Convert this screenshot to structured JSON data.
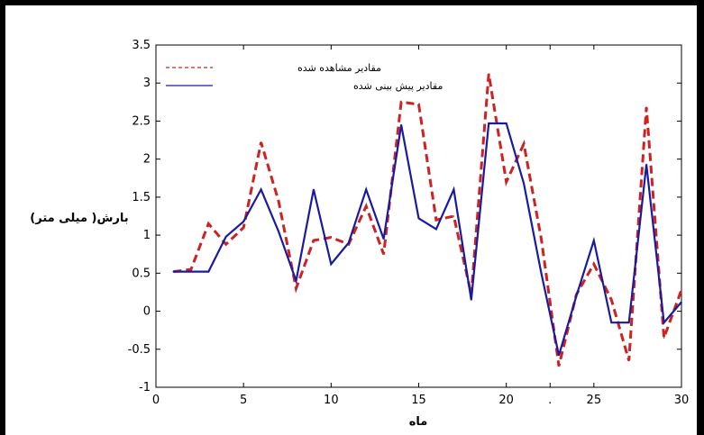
{
  "chart_data": {
    "type": "line",
    "title": "",
    "xlabel": "ماه",
    "ylabel": "بارش( میلی متر)",
    "xlim": [
      0,
      30
    ],
    "ylim": [
      -1,
      3.5
    ],
    "xticks": [
      "0",
      "5",
      "10",
      "15",
      "20",
      ".",
      "25",
      "30"
    ],
    "xtick_values": [
      0,
      5,
      10,
      15,
      20,
      22.5,
      25,
      30
    ],
    "yticks": [
      "-1",
      "-0.5",
      "0",
      "0.5",
      "1",
      "1.5",
      "2",
      "2.5",
      "3",
      "3.5"
    ],
    "ytick_values": [
      -1,
      -0.5,
      0,
      0.5,
      1,
      1.5,
      2,
      2.5,
      3,
      3.5
    ],
    "grid": false,
    "legend_position": "top-left",
    "x": [
      1,
      2,
      3,
      4,
      5,
      6,
      7,
      8,
      9,
      10,
      11,
      12,
      13,
      14,
      15,
      16,
      17,
      18,
      19,
      20,
      21,
      22,
      23,
      24,
      25,
      26,
      27,
      28,
      29,
      30
    ],
    "series": [
      {
        "name": "مقادیر مشاهده شده",
        "color": "#cc2222",
        "style": "dashed",
        "values": [
          0.52,
          0.55,
          1.15,
          0.88,
          1.1,
          2.22,
          1.45,
          0.3,
          0.93,
          0.97,
          0.88,
          1.38,
          0.75,
          2.75,
          2.72,
          1.2,
          1.25,
          0.22,
          3.12,
          1.7,
          2.2,
          0.95,
          -0.72,
          0.22,
          0.62,
          0.15,
          -0.65,
          2.68,
          -0.35,
          0.28
        ]
      },
      {
        "name": "مقادیر پیش بینی شده",
        "color": "#1a1aa0",
        "style": "solid",
        "values": [
          0.52,
          0.52,
          0.52,
          0.98,
          1.18,
          1.6,
          1.05,
          0.4,
          1.6,
          0.62,
          0.9,
          1.6,
          0.95,
          2.45,
          1.22,
          1.08,
          1.6,
          0.15,
          2.47,
          2.47,
          1.68,
          0.5,
          -0.58,
          0.2,
          0.93,
          -0.15,
          -0.15,
          1.93,
          -0.15,
          0.12
        ]
      }
    ]
  }
}
